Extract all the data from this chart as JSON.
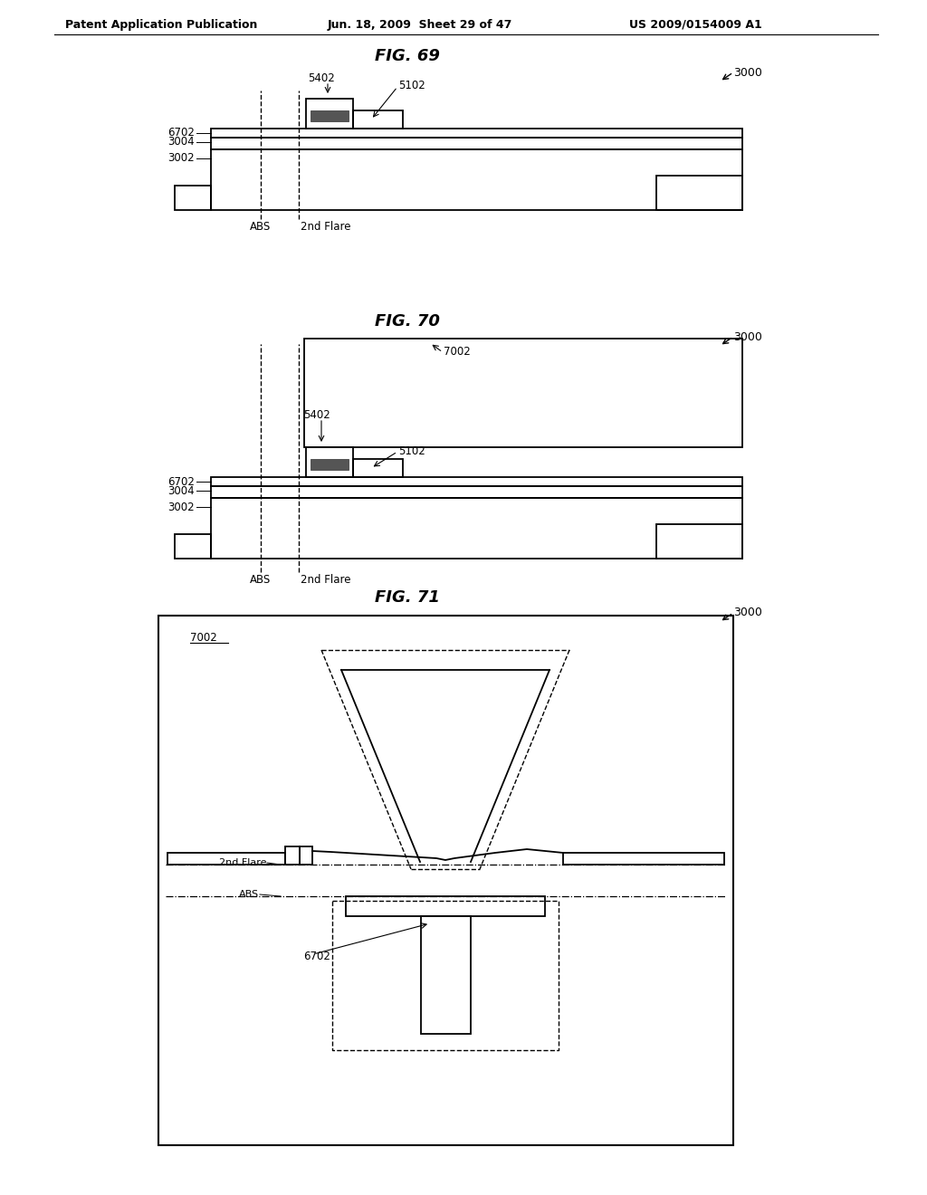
{
  "header_left": "Patent Application Publication",
  "header_mid": "Jun. 18, 2009  Sheet 29 of 47",
  "header_right": "US 2009/0154009 A1",
  "fig69_title": "FIG. 69",
  "fig70_title": "FIG. 70",
  "fig71_title": "FIG. 71",
  "label_3000": "3000",
  "label_6702": "6702",
  "label_3004": "3004",
  "label_3002": "3002",
  "label_5402": "5402",
  "label_5102": "5102",
  "label_7002": "7002",
  "label_6702b": "6702",
  "label_abs": "ABS",
  "label_2nd_flare": "2nd Flare",
  "bg_color": "#ffffff",
  "line_color": "#000000"
}
